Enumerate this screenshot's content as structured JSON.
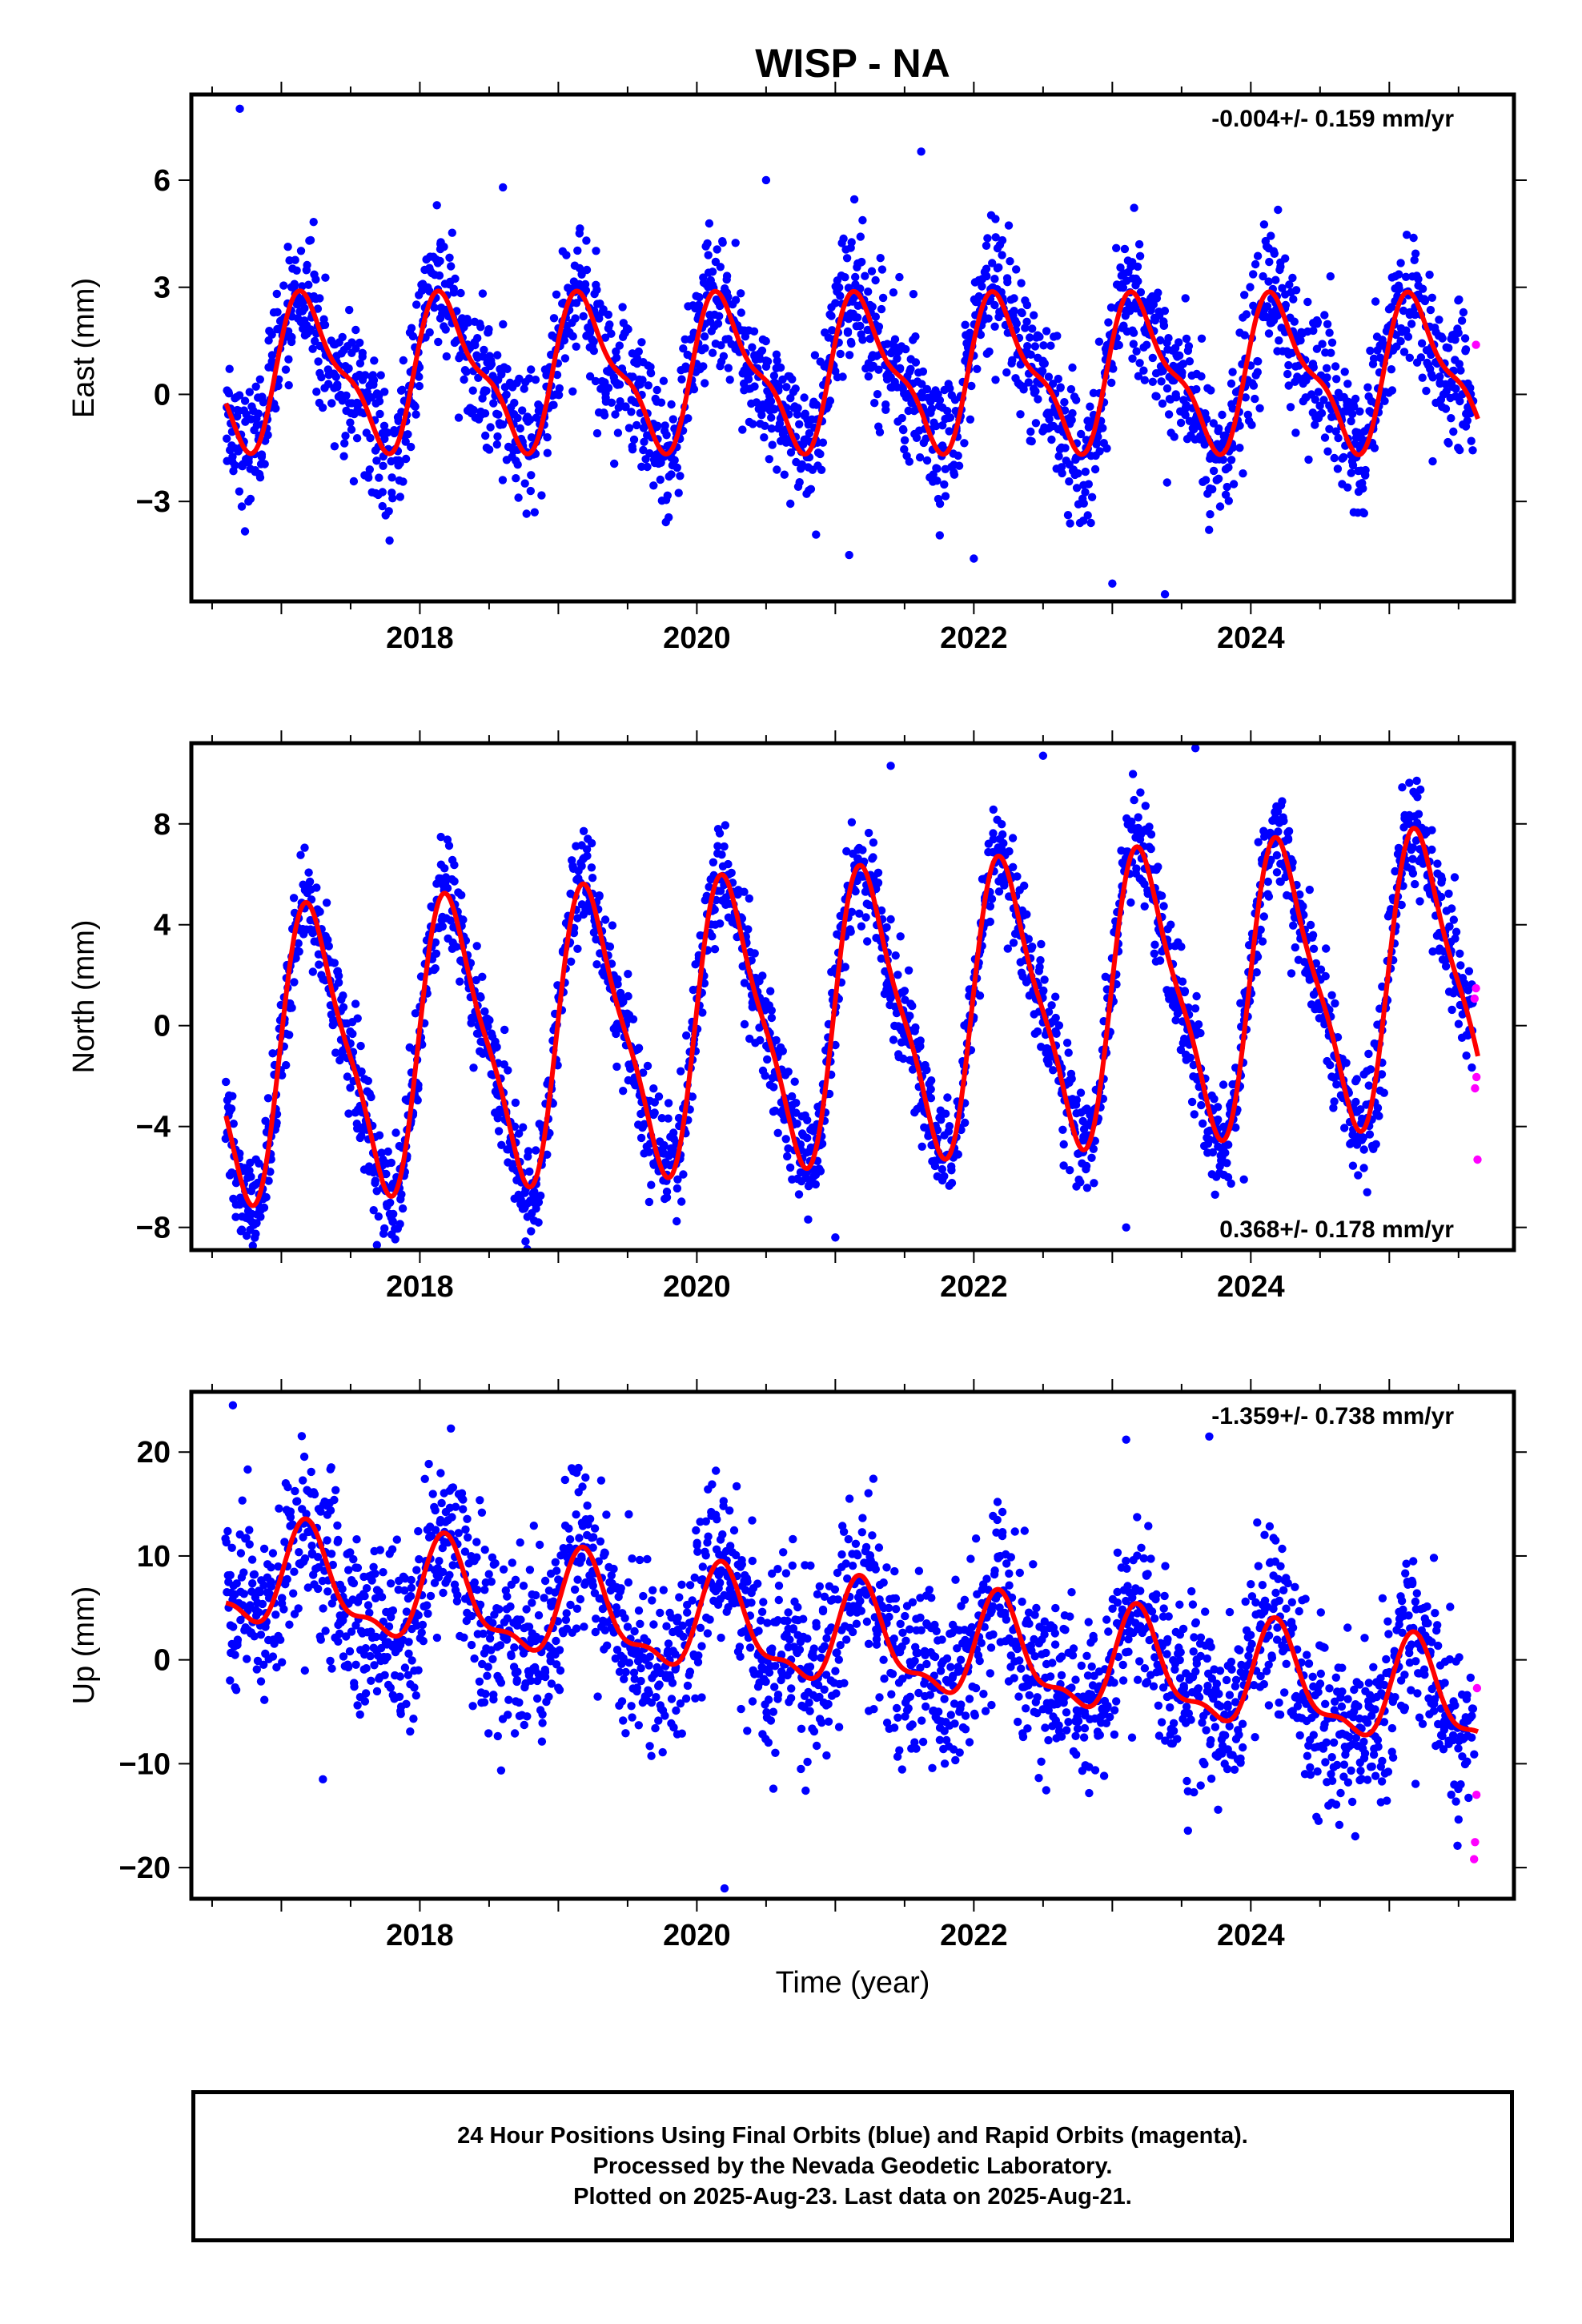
{
  "figure": {
    "title": "WISP - NA",
    "xlabel": "Time (year)"
  },
  "colors": {
    "final_orbits": "#0000ff",
    "rapid_orbits": "#ff00ff",
    "model_fit": "#ff0000",
    "frame": "#000000"
  },
  "chart_data": [
    {
      "type": "scatter",
      "panel": "east",
      "ylabel": "East (mm)",
      "rate_label": "-0.004+/- 0.159 mm/yr",
      "rate_label_position": "top-right",
      "xlim": [
        2016.35,
        2025.9
      ],
      "ylim": [
        -5.8,
        8.4
      ],
      "xticks": [
        2018,
        2020,
        2022,
        2024
      ],
      "xtick_labels": [
        "2018",
        "2020",
        "2022",
        "2024"
      ],
      "yticks": [
        -3,
        0,
        3,
        6
      ],
      "ytick_labels": [
        "−3",
        "0",
        "3",
        "6"
      ],
      "data_start": 2016.6,
      "data_end": 2025.64,
      "rapid_start": 2025.61,
      "model": {
        "offset": 0.6,
        "trend_mm_per_yr": -0.004,
        "annual": [
          1.85,
          0.55
        ],
        "semiannual": [
          0.6,
          0.35
        ],
        "noise_sd": 0.95
      },
      "outliers": [
        {
          "x": 2016.7,
          "y": 8.0
        },
        {
          "x": 2020.5,
          "y": 6.0
        },
        {
          "x": 2018.6,
          "y": 5.8
        },
        {
          "x": 2021.62,
          "y": 6.8
        },
        {
          "x": 2023.0,
          "y": -5.3
        },
        {
          "x": 2023.38,
          "y": -5.6
        },
        {
          "x": 2021.1,
          "y": -4.5
        },
        {
          "x": 2022.0,
          "y": -4.6
        }
      ],
      "series": [
        {
          "name": "Final Orbits",
          "color": "#0000ff"
        },
        {
          "name": "Rapid Orbits",
          "color": "#ff00ff"
        },
        {
          "name": "Model Fit",
          "color": "#ff0000"
        }
      ]
    },
    {
      "type": "scatter",
      "panel": "north",
      "ylabel": "North (mm)",
      "rate_label": "0.368+/- 0.178 mm/yr",
      "rate_label_position": "bottom-right",
      "xlim": [
        2016.35,
        2025.9
      ],
      "ylim": [
        -8.9,
        11.2
      ],
      "xticks": [
        2018,
        2020,
        2022,
        2024
      ],
      "xtick_labels": [
        "2018",
        "2020",
        "2022",
        "2024"
      ],
      "yticks": [
        -8,
        -4,
        0,
        4,
        8
      ],
      "ytick_labels": [
        "−8",
        "−4",
        "0",
        "4",
        "8"
      ],
      "data_start": 2016.6,
      "data_end": 2025.64,
      "rapid_start": 2025.61,
      "model": {
        "offset": -1.3,
        "trend_mm_per_yr": 0.368,
        "annual": [
          5.4,
          0.5
        ],
        "semiannual": [
          1.3,
          0.2
        ],
        "noise_sd": 1.05
      },
      "outliers": [
        {
          "x": 2023.1,
          "y": -8.0
        },
        {
          "x": 2021.0,
          "y": -8.4
        },
        {
          "x": 2023.6,
          "y": 11.0
        },
        {
          "x": 2022.5,
          "y": 10.7
        },
        {
          "x": 2021.4,
          "y": 10.3
        },
        {
          "x": 2023.95,
          "y": -6.1
        }
      ],
      "series": [
        {
          "name": "Final Orbits",
          "color": "#0000ff"
        },
        {
          "name": "Rapid Orbits",
          "color": "#ff00ff"
        },
        {
          "name": "Model Fit",
          "color": "#ff0000"
        }
      ]
    },
    {
      "type": "scatter",
      "panel": "up",
      "ylabel": "Up (mm)",
      "rate_label": "-1.359+/- 0.738 mm/yr",
      "rate_label_position": "top-right",
      "xlim": [
        2016.35,
        2025.9
      ],
      "ylim": [
        -23.0,
        25.8
      ],
      "xticks": [
        2018,
        2020,
        2022,
        2024
      ],
      "xtick_labels": [
        "2018",
        "2020",
        "2022",
        "2024"
      ],
      "yticks": [
        -20,
        -10,
        0,
        10,
        20
      ],
      "ytick_labels": [
        "−20",
        "−10",
        "0",
        "10",
        "20"
      ],
      "data_start": 2016.6,
      "data_end": 2025.64,
      "rapid_start": 2025.61,
      "model": {
        "offset": 8.0,
        "trend_mm_per_yr": -1.359,
        "annual": [
          4.4,
          1.5
        ],
        "semiannual": [
          1.6,
          -0.8
        ],
        "noise_sd": 4.3
      },
      "outliers": [
        {
          "x": 2016.65,
          "y": 24.5
        },
        {
          "x": 2020.2,
          "y": -22.0
        },
        {
          "x": 2023.1,
          "y": 21.2
        },
        {
          "x": 2023.7,
          "y": 21.5
        },
        {
          "x": 2017.3,
          "y": -11.5
        }
      ],
      "series": [
        {
          "name": "Final Orbits",
          "color": "#0000ff"
        },
        {
          "name": "Rapid Orbits",
          "color": "#ff00ff"
        },
        {
          "name": "Model Fit",
          "color": "#ff0000"
        }
      ]
    }
  ],
  "caption": {
    "line1": "24 Hour Positions Using Final Orbits (blue) and Rapid Orbits (magenta).",
    "line2": "Processed by the Nevada Geodetic Laboratory.",
    "line3": "Plotted on 2025-Aug-23. Last data on 2025-Aug-21."
  }
}
